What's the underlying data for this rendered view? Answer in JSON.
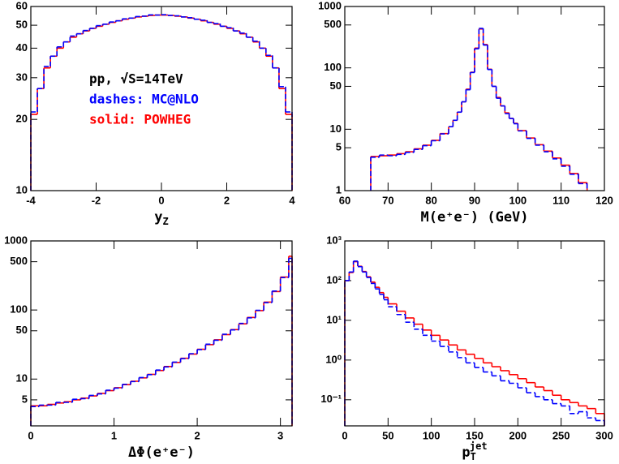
{
  "chart_data": [
    {
      "type": "histogram",
      "log_y": true,
      "xlabel": {
        "base": "y",
        "sub": "Z"
      },
      "annotations": [
        {
          "text": "pp, √S=14TeV",
          "color": "#000000"
        },
        {
          "text": "dashes: MC@NLO",
          "color": "#0000ff"
        },
        {
          "text": "solid: POWHEG",
          "color": "#ff0000"
        }
      ],
      "xlim": [
        -4,
        4
      ],
      "xticks": [
        -4,
        -2,
        0,
        2,
        4
      ],
      "ylim": [
        10,
        60
      ],
      "yticks": [
        10,
        20,
        30,
        40,
        50,
        60
      ],
      "bins": [
        -4,
        -3.8,
        -3.6,
        -3.4,
        -3.2,
        -3,
        -2.8,
        -2.6,
        -2.4,
        -2.2,
        -2,
        -1.8,
        -1.6,
        -1.4,
        -1.2,
        -1,
        -0.8,
        -0.6,
        -0.4,
        -0.2,
        0,
        0.2,
        0.4,
        0.6,
        0.8,
        1,
        1.2,
        1.4,
        1.6,
        1.8,
        2,
        2.2,
        2.4,
        2.6,
        2.8,
        3,
        3.2,
        3.4,
        3.6,
        3.8,
        4
      ],
      "series": [
        {
          "color": "#ff0000",
          "dashed": false,
          "values": [
            21,
            27,
            33,
            37,
            40,
            42.5,
            44.5,
            46,
            47.3,
            48.5,
            49.5,
            50.5,
            51.4,
            52.2,
            53,
            53.6,
            54.2,
            54.6,
            55,
            55.2,
            55.2,
            55,
            54.6,
            54.2,
            53.6,
            53,
            52.2,
            51.4,
            50.5,
            49.5,
            48.5,
            47.3,
            46,
            44.5,
            42.5,
            40,
            37,
            33,
            27,
            21
          ]
        },
        {
          "color": "#0000ff",
          "dashed": true,
          "values": [
            21.5,
            27,
            33.5,
            37,
            40.5,
            42.5,
            45,
            46,
            47.5,
            48.5,
            49.8,
            50.5,
            51.6,
            52.2,
            53.2,
            53.6,
            54.4,
            54.6,
            55.3,
            55.2,
            55.4,
            55,
            54.8,
            54.2,
            53.8,
            53,
            52.5,
            51.4,
            50.8,
            49.5,
            48.8,
            47.3,
            46.3,
            44.5,
            42.8,
            40,
            37.3,
            33,
            27.5,
            21.5
          ]
        }
      ]
    },
    {
      "type": "histogram",
      "log_y": true,
      "xlabel": {
        "base": "M(e⁺e⁻) (GeV)"
      },
      "xlim": [
        60,
        120
      ],
      "xticks": [
        60,
        70,
        80,
        90,
        100,
        110,
        120
      ],
      "ylim": [
        1,
        1000
      ],
      "yticks": [
        1,
        5,
        10,
        50,
        100,
        500,
        1000
      ],
      "bins": [
        66,
        68,
        70,
        72,
        74,
        76,
        78,
        80,
        82,
        84,
        85,
        86,
        87,
        88,
        89,
        90,
        91,
        92,
        93,
        94,
        95,
        96,
        97,
        98,
        99,
        100,
        102,
        104,
        106,
        108,
        110,
        112,
        114,
        116
      ],
      "series": [
        {
          "color": "#ff0000",
          "dashed": false,
          "values": [
            3.6,
            3.7,
            3.8,
            4.0,
            4.3,
            4.8,
            5.5,
            6.6,
            8.5,
            11,
            14,
            19,
            28,
            45,
            85,
            210,
            430,
            240,
            95,
            50,
            33,
            24,
            18.5,
            15,
            12.5,
            9.5,
            7.2,
            5.6,
            4.4,
            3.4,
            2.6,
            1.9,
            1.35
          ]
        },
        {
          "color": "#0000ff",
          "dashed": true,
          "values": [
            3.5,
            3.8,
            3.7,
            3.9,
            4.2,
            4.7,
            5.4,
            6.5,
            8.4,
            11,
            14,
            19,
            28,
            44,
            84,
            205,
            440,
            235,
            94,
            50,
            32,
            24,
            18,
            15,
            12.3,
            9.4,
            7.1,
            5.5,
            4.3,
            3.3,
            2.5,
            1.85,
            1.3
          ]
        }
      ]
    },
    {
      "type": "histogram",
      "log_y": true,
      "xlabel": {
        "base": "ΔΦ(e⁺e⁻)"
      },
      "xlim": [
        0,
        3.14
      ],
      "xticks": [
        0,
        1,
        2,
        3
      ],
      "ylim": [
        2.1,
        1000
      ],
      "yticks": [
        5,
        10,
        50,
        100,
        500,
        1000
      ],
      "bins": [
        0,
        0.1,
        0.2,
        0.3,
        0.4,
        0.5,
        0.6,
        0.7,
        0.8,
        0.9,
        1,
        1.1,
        1.2,
        1.3,
        1.4,
        1.5,
        1.6,
        1.7,
        1.8,
        1.9,
        2,
        2.1,
        2.2,
        2.3,
        2.4,
        2.5,
        2.6,
        2.7,
        2.8,
        2.9,
        3,
        3.1,
        3.14
      ],
      "series": [
        {
          "color": "#ff0000",
          "dashed": false,
          "values": [
            4.1,
            4.1,
            4.3,
            4.5,
            4.7,
            5.0,
            5.3,
            5.7,
            6.2,
            6.8,
            7.5,
            8.3,
            9.3,
            10.4,
            11.7,
            13.3,
            15.2,
            17.4,
            20,
            23,
            27,
            31.5,
            37,
            44,
            52,
            63,
            78,
            98,
            130,
            185,
            300,
            600
          ]
        },
        {
          "color": "#0000ff",
          "dashed": true,
          "values": [
            4.0,
            4.2,
            4.2,
            4.6,
            4.6,
            5.1,
            5.2,
            5.8,
            6.1,
            6.9,
            7.4,
            8.4,
            9.2,
            10.5,
            11.6,
            13.5,
            15.0,
            17.6,
            19.8,
            23.3,
            26.7,
            32,
            36.5,
            44.5,
            51.5,
            64,
            77,
            99,
            128,
            188,
            295,
            560
          ]
        }
      ]
    },
    {
      "type": "histogram",
      "log_y": true,
      "xlabel": {
        "base": "p",
        "sub": "T",
        "sup": "jet"
      },
      "xlim": [
        0,
        300
      ],
      "xticks": [
        0,
        50,
        100,
        150,
        200,
        250,
        300
      ],
      "ylim": [
        0.022,
        1000
      ],
      "yticks": [
        {
          "value": 0.1,
          "label": "10⁻¹"
        },
        {
          "value": 1,
          "label": "10⁰"
        },
        {
          "value": 10,
          "label": "10¹"
        },
        {
          "value": 100,
          "label": "10²"
        },
        {
          "value": 1000,
          "label": "10³"
        }
      ],
      "bins": [
        0,
        5,
        10,
        15,
        20,
        25,
        30,
        35,
        40,
        45,
        50,
        60,
        70,
        80,
        90,
        100,
        110,
        120,
        130,
        140,
        150,
        160,
        170,
        180,
        190,
        200,
        210,
        220,
        230,
        240,
        250,
        260,
        270,
        280,
        290,
        300
      ],
      "series": [
        {
          "color": "#ff0000",
          "dashed": false,
          "values": [
            100,
            160,
            300,
            230,
            170,
            125,
            92,
            68,
            50,
            38,
            26,
            17,
            11.5,
            8,
            5.7,
            4.2,
            3.2,
            2.4,
            1.8,
            1.4,
            1.1,
            0.85,
            0.68,
            0.54,
            0.43,
            0.34,
            0.27,
            0.21,
            0.17,
            0.13,
            0.1,
            0.085,
            0.07,
            0.06,
            0.045
          ]
        },
        {
          "color": "#0000ff",
          "dashed": true,
          "values": [
            100,
            165,
            310,
            225,
            165,
            120,
            85,
            62,
            45,
            33,
            22,
            14,
            9,
            6,
            4.2,
            3.0,
            2.2,
            1.6,
            1.15,
            0.85,
            0.65,
            0.5,
            0.4,
            0.3,
            0.26,
            0.2,
            0.15,
            0.12,
            0.1,
            0.08,
            0.07,
            0.045,
            0.05,
            0.035,
            0.03
          ]
        }
      ]
    }
  ]
}
